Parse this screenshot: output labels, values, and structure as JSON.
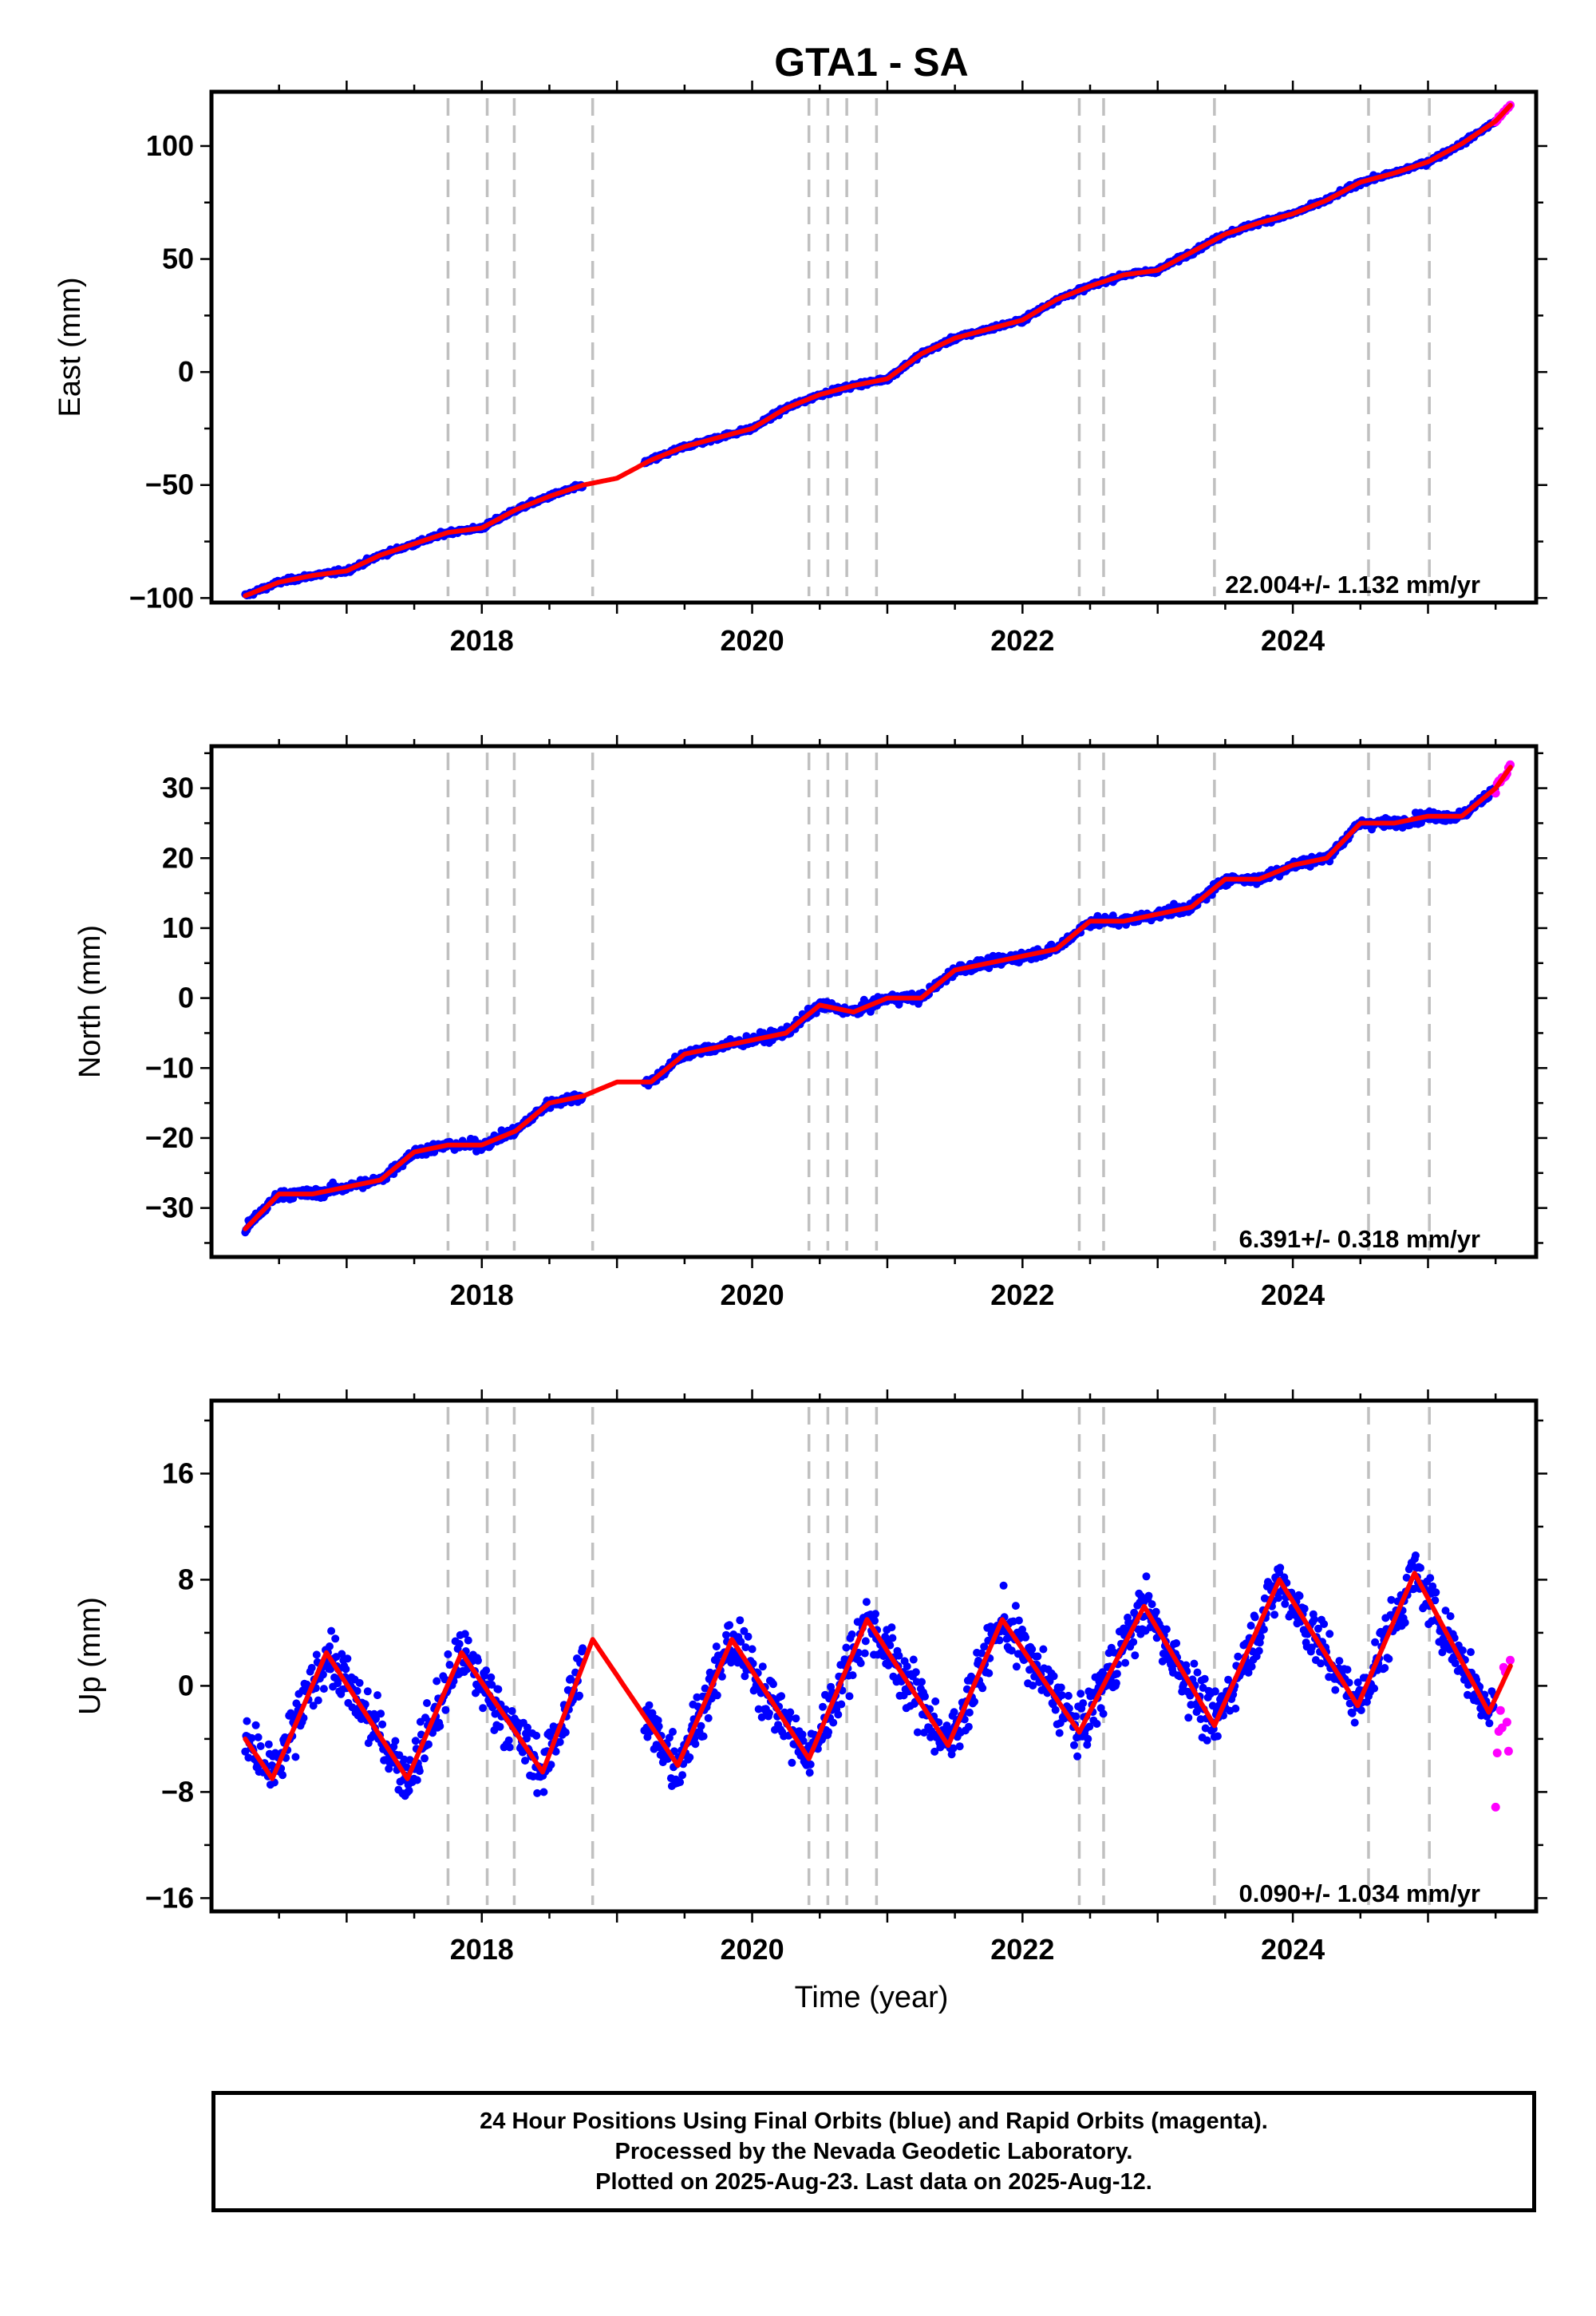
{
  "title": "GTA1 - SA",
  "xlabel": "Time (year)",
  "footer": {
    "line1": "24 Hour Positions Using Final Orbits (blue) and Rapid Orbits (magenta).",
    "line2": "Processed by the Nevada Geodetic Laboratory.",
    "line3": "Plotted on 2025-Aug-23. Last data on 2025-Aug-12."
  },
  "colors": {
    "final_orbits": "#0000ff",
    "rapid_orbits": "#ff00ff",
    "model_fit": "#ff0000",
    "event_lines": "#c0c0c0"
  },
  "chart_data": [
    {
      "type": "scatter",
      "panel": "east",
      "ylabel": "East (mm)",
      "rate_label": "22.004+/- 1.132 mm/yr",
      "xlim": [
        2016.0,
        2025.8
      ],
      "ylim": [
        -102,
        124
      ],
      "xticks": [
        2018,
        2020,
        2022,
        2024
      ],
      "yticks": [
        -100,
        -50,
        0,
        50,
        100
      ],
      "event_lines": [
        2017.75,
        2018.04,
        2018.24,
        2018.82,
        2020.42,
        2020.56,
        2020.7,
        2020.92,
        2022.42,
        2022.6,
        2023.42,
        2024.56,
        2025.01
      ],
      "gap": [
        2018.75,
        2019.2
      ],
      "rapid_start": 2025.5,
      "last_data": 2025.61,
      "series": [
        {
          "kind": "fit",
          "x": [
            2016.25,
            2016.5,
            2016.75,
            2017.0,
            2017.25,
            2017.5,
            2017.75,
            2018.0,
            2018.25,
            2018.5,
            2018.75,
            2019.0,
            2019.25,
            2019.5,
            2019.75,
            2020.0,
            2020.25,
            2020.5,
            2020.75,
            2021.0,
            2021.25,
            2021.5,
            2021.75,
            2022.0,
            2022.25,
            2022.5,
            2022.75,
            2023.0,
            2023.25,
            2023.5,
            2023.75,
            2024.0,
            2024.25,
            2024.5,
            2024.75,
            2025.0,
            2025.25,
            2025.5,
            2025.61
          ],
          "y": [
            -99,
            -93,
            -90,
            -88,
            -81,
            -76,
            -71,
            -69,
            -61,
            -55,
            -50,
            -47,
            -39,
            -33,
            -29,
            -25,
            -16,
            -10,
            -6,
            -3,
            8,
            15,
            19,
            23,
            32,
            38,
            43,
            45,
            53,
            61,
            66,
            70,
            76,
            84,
            88,
            93,
            101,
            111,
            118
          ]
        }
      ]
    },
    {
      "type": "scatter",
      "panel": "north",
      "ylabel": "North (mm)",
      "rate_label": "6.391+/- 0.318 mm/yr",
      "xlim": [
        2016.0,
        2025.8
      ],
      "ylim": [
        -37,
        36
      ],
      "xticks": [
        2018,
        2020,
        2022,
        2024
      ],
      "yticks": [
        -30,
        -20,
        -10,
        0,
        10,
        20,
        30
      ],
      "event_lines": [
        2017.75,
        2018.04,
        2018.24,
        2018.82,
        2020.42,
        2020.56,
        2020.7,
        2020.92,
        2022.42,
        2022.6,
        2023.42,
        2024.56,
        2025.01
      ],
      "gap": [
        2018.75,
        2019.2
      ],
      "rapid_start": 2025.5,
      "last_data": 2025.61,
      "series": [
        {
          "kind": "fit",
          "x": [
            2016.25,
            2016.5,
            2016.75,
            2017.0,
            2017.25,
            2017.5,
            2017.75,
            2018.0,
            2018.25,
            2018.5,
            2018.75,
            2019.0,
            2019.25,
            2019.5,
            2019.75,
            2020.0,
            2020.25,
            2020.5,
            2020.75,
            2021.0,
            2021.25,
            2021.5,
            2021.75,
            2022.0,
            2022.25,
            2022.5,
            2022.75,
            2023.0,
            2023.25,
            2023.5,
            2023.75,
            2024.0,
            2024.25,
            2024.5,
            2024.75,
            2025.0,
            2025.25,
            2025.5,
            2025.61
          ],
          "y": [
            -33,
            -28,
            -28,
            -27,
            -26,
            -22,
            -21,
            -21,
            -19,
            -15,
            -14,
            -12,
            -12,
            -8,
            -7,
            -6,
            -5,
            -1,
            -2,
            0,
            0,
            4,
            5,
            6,
            7,
            11,
            11,
            12,
            13,
            17,
            17,
            19,
            20,
            25,
            25,
            26,
            26,
            30,
            33
          ]
        }
      ]
    },
    {
      "type": "scatter",
      "panel": "up",
      "ylabel": "Up (mm)",
      "rate_label": "0.090+/- 1.034 mm/yr",
      "xlim": [
        2016.0,
        2025.8
      ],
      "ylim": [
        -17,
        21.5
      ],
      "xticks": [
        2018,
        2020,
        2022,
        2024
      ],
      "yticks": [
        -16,
        -8,
        0,
        8,
        16
      ],
      "event_lines": [
        2017.75,
        2018.04,
        2018.24,
        2018.82,
        2020.42,
        2020.56,
        2020.7,
        2020.92,
        2022.42,
        2022.6,
        2023.42,
        2024.56,
        2025.01
      ],
      "gap": [
        2018.75,
        2019.2
      ],
      "rapid_start": 2025.5,
      "last_data": 2025.61,
      "series": [
        {
          "kind": "fit",
          "x": [
            2016.25,
            2016.45,
            2016.85,
            2017.45,
            2017.85,
            2018.45,
            2018.82,
            2019.45,
            2019.85,
            2020.42,
            2020.85,
            2021.45,
            2021.85,
            2022.42,
            2022.9,
            2023.42,
            2023.9,
            2024.48,
            2024.9,
            2025.45,
            2025.61
          ],
          "y": [
            -4,
            -7,
            2.5,
            -7,
            2.5,
            -6.5,
            3.5,
            -6,
            3.5,
            -5.5,
            5,
            -4.5,
            5,
            -3.5,
            6,
            -3,
            8,
            -1.5,
            8.5,
            -2,
            1.5
          ]
        }
      ]
    }
  ]
}
